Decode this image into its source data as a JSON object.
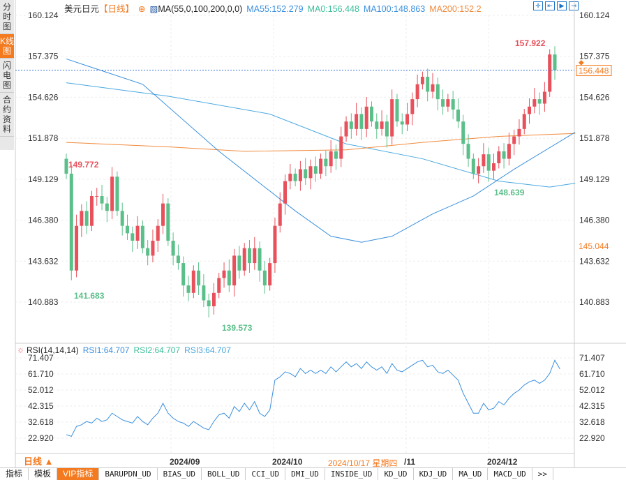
{
  "sidebar": [
    "分时图",
    "K线图",
    "闪电图",
    "合约资料"
  ],
  "legend": {
    "title": "美元日元",
    "period": "【日线】",
    "ma_label": "MA(55,0,100,200,0,0)",
    "ma55": "MA55:152.279",
    "ma0": "MA0:156.448",
    "ma100": "MA100:148.863",
    "ma200": "MA200:152.2"
  },
  "colors": {
    "up": "#e8505b",
    "down": "#5bbf8a",
    "ma55": "#3a8fde",
    "ma100": "#4aa8e0",
    "ma200": "#f08a3c",
    "accent": "#f47a1f"
  },
  "tools": [
    "move-icon",
    "zoom-in-icon",
    "zoom-out-icon",
    "end-icon"
  ],
  "price_axis": [
    "160.124",
    "157.375",
    "154.626",
    "151.878",
    "149.129",
    "146.380",
    "143.632",
    "140.883"
  ],
  "rsi_axis": [
    "71.407",
    "61.710",
    "52.012",
    "42.315",
    "32.618",
    "22.920"
  ],
  "annotations": {
    "high": "157.922",
    "max_left": "149.772",
    "min_left": "141.683",
    "min": "139.573",
    "low_right": "148.639",
    "current": "156.448",
    "cursor_price": "145.044"
  },
  "rsi_legend": {
    "label": "RSI(14,14,14)",
    "rsi1": "RSI1:64.707",
    "rsi2": "RSI2:64.707",
    "rsi3": "RSI3:64.707"
  },
  "date_axis": {
    "period": "日线 ▲",
    "labels": [
      "2024/09",
      "2024/10",
      "2024/10/17 星期四",
      "/11",
      "2024/12"
    ]
  },
  "tabs": [
    "指标",
    "模板",
    "VIP指标",
    "BARUPDN_UD",
    "BIAS_UD",
    "BOLL_UD",
    "CCI_UD",
    "DMI_UD",
    "INSIDE_UD",
    "KD_UD",
    "KDJ_UD",
    "MA_UD",
    "MACD_UD",
    ">>"
  ],
  "chart_data": {
    "type": "candlestick",
    "close": [
      149.5,
      143,
      146,
      147,
      146,
      148,
      148,
      147.5,
      147,
      149.3,
      147,
      146,
      145.5,
      145,
      146,
      144.5,
      144,
      145,
      146,
      147.5,
      145,
      144,
      143.5,
      142,
      141.5,
      143,
      142,
      141,
      140.6,
      141.5,
      142.5,
      143,
      142,
      144,
      143,
      144.5,
      143.5,
      144.5,
      143,
      142,
      143.5,
      146,
      147.5,
      149,
      149.5,
      149,
      149.8,
      149.2,
      150,
      149.5,
      150.5,
      150,
      151,
      150.5,
      152,
      153,
      152.5,
      153.5,
      152.5,
      154,
      153,
      152.5,
      153,
      152,
      154.5,
      153,
      152.8,
      153.5,
      154.5,
      155.5,
      156,
      155,
      155.5,
      154.5,
      154,
      154.5,
      153.8,
      153,
      151.5,
      150.5,
      149.5,
      150,
      150.8,
      149.7,
      150.2,
      151,
      150.5,
      151.5,
      152,
      152.5,
      153.5,
      154,
      154.5,
      154.2,
      155,
      157.5,
      156.448
    ],
    "ma55": [
      [
        0,
        157.2
      ],
      [
        15,
        155.5
      ],
      [
        30,
        151
      ],
      [
        45,
        147
      ],
      [
        52,
        145.3
      ],
      [
        58,
        144.9
      ],
      [
        64,
        145.3
      ],
      [
        72,
        146.8
      ],
      [
        80,
        148
      ],
      [
        88,
        149.8
      ],
      [
        100,
        152.28
      ]
    ],
    "ma100": [
      [
        0,
        155.6
      ],
      [
        20,
        154.7
      ],
      [
        40,
        153.5
      ],
      [
        55,
        151.5
      ],
      [
        70,
        150.5
      ],
      [
        85,
        149
      ],
      [
        95,
        148.6
      ],
      [
        100,
        148.86
      ]
    ],
    "ma200": [
      [
        0,
        151.6
      ],
      [
        20,
        151.3
      ],
      [
        35,
        151
      ],
      [
        55,
        151.1
      ],
      [
        70,
        151.6
      ],
      [
        85,
        152
      ],
      [
        100,
        152.2
      ]
    ],
    "rsi": [
      25,
      24,
      30,
      31,
      33,
      32,
      35,
      33,
      34,
      38,
      36,
      34,
      33,
      32,
      36,
      33,
      31,
      35,
      38,
      44,
      38,
      35,
      33,
      32,
      30,
      33,
      31,
      29,
      28,
      33,
      37,
      38,
      35,
      42,
      39,
      44,
      40,
      45,
      38,
      36,
      40,
      58,
      60,
      63,
      62,
      60,
      65,
      62,
      64,
      62,
      64,
      62,
      66,
      63,
      66,
      69,
      66,
      68,
      65,
      69,
      66,
      64,
      66,
      62,
      68,
      64,
      63,
      65,
      67,
      69,
      70,
      66,
      67,
      63,
      62,
      64,
      61,
      58,
      50,
      44,
      38,
      38,
      44,
      40,
      41,
      45,
      43,
      47,
      50,
      52,
      55,
      57,
      58,
      56,
      58,
      62,
      70,
      64.7
    ],
    "price_range": [
      138.5,
      160.9
    ],
    "rsi_range": [
      17,
      75
    ]
  }
}
